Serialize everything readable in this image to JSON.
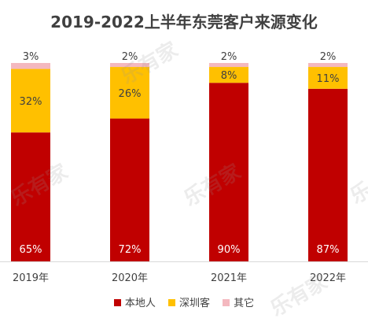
{
  "chart_data": {
    "type": "bar",
    "stacked": true,
    "percent": true,
    "title": "2019-2022上半年东莞客户来源变化",
    "categories": [
      "2019年",
      "2020年",
      "2021年",
      "2022年"
    ],
    "series": [
      {
        "name": "本地人",
        "color": "#C00000",
        "values": [
          65,
          72,
          90,
          87
        ],
        "labels": [
          "65%",
          "72%",
          "90%",
          "87%"
        ]
      },
      {
        "name": "深圳客",
        "color": "#FFC000",
        "values": [
          32,
          26,
          8,
          11
        ],
        "labels": [
          "32%",
          "26%",
          "8%",
          "11%"
        ]
      },
      {
        "name": "其它",
        "color": "#F4B8BF",
        "values": [
          3,
          2,
          2,
          2
        ],
        "labels": [
          "3%",
          "2%",
          "2%",
          "2%"
        ]
      }
    ],
    "ylim": [
      0,
      100
    ],
    "grid": false,
    "legend_position": "bottom"
  },
  "watermark": "乐有家"
}
